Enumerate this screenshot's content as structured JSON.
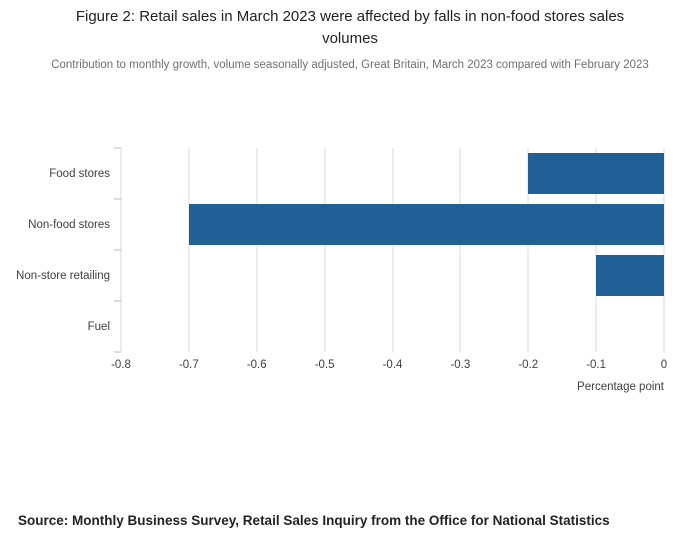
{
  "header": {
    "title": "Figure 2: Retail sales in March 2023 were affected by falls in non-food stores sales volumes",
    "subtitle": "Contribution to monthly growth, volume seasonally adjusted, Great Britain, March 2023 compared with February 2023"
  },
  "chart_data": {
    "type": "bar",
    "orientation": "horizontal",
    "categories": [
      "Food stores",
      "Non-food stores",
      "Non-store retailing",
      "Fuel"
    ],
    "values": [
      -0.2,
      -0.7,
      -0.1,
      0
    ],
    "title": "Figure 2: Retail sales in March 2023 were affected by falls in non-food stores sales volumes",
    "xlabel": "Percentage point",
    "ylabel": "",
    "xlim": [
      -0.8,
      0
    ],
    "xticks": [
      -0.8,
      -0.7,
      -0.6,
      -0.5,
      -0.4,
      -0.3,
      -0.2,
      -0.1,
      0
    ],
    "grid": true,
    "bar_color": "#206095"
  },
  "footer": {
    "source": "Source: Monthly Business Survey, Retail Sales Inquiry from the Office for National Statistics"
  }
}
